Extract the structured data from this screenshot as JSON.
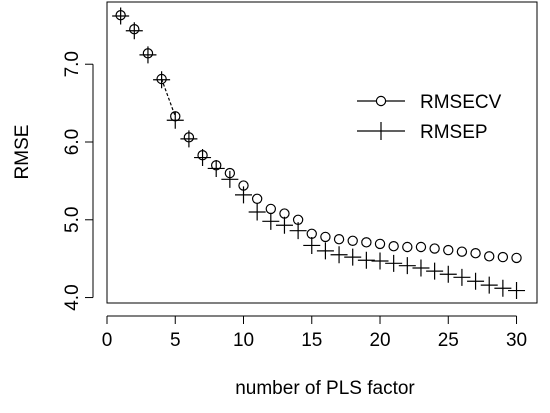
{
  "chart_data": {
    "type": "line",
    "title": "",
    "xlabel": "number of PLS factor",
    "ylabel": "RMSE",
    "xlim": [
      0,
      31.5
    ],
    "ylim": [
      3.93,
      7.8
    ],
    "x_ticks": [
      0,
      5,
      10,
      15,
      20,
      25,
      30
    ],
    "y_ticks": [
      4.0,
      5.0,
      6.0,
      7.0
    ],
    "y_tick_labels": [
      "4.0",
      "5.0",
      "6.0",
      "7.0"
    ],
    "grid": false,
    "legend_position": "top-right",
    "x": [
      1,
      2,
      3,
      4,
      5,
      6,
      7,
      8,
      9,
      10,
      11,
      12,
      13,
      14,
      15,
      16,
      17,
      18,
      19,
      20,
      21,
      22,
      23,
      24,
      25,
      26,
      27,
      28,
      29,
      30
    ],
    "series": [
      {
        "name": "RMSECV",
        "marker": "circle",
        "values": [
          7.63,
          7.45,
          7.14,
          6.81,
          6.33,
          6.06,
          5.83,
          5.7,
          5.6,
          5.44,
          5.27,
          5.14,
          5.08,
          5.0,
          4.82,
          4.78,
          4.75,
          4.73,
          4.71,
          4.69,
          4.66,
          4.65,
          4.65,
          4.63,
          4.61,
          4.59,
          4.57,
          4.53,
          4.52,
          4.51
        ]
      },
      {
        "name": "RMSEP",
        "marker": "plus",
        "values": [
          7.62,
          7.43,
          7.12,
          6.8,
          6.28,
          6.04,
          5.8,
          5.66,
          5.52,
          5.32,
          5.1,
          4.98,
          4.93,
          4.86,
          4.67,
          4.6,
          4.55,
          4.52,
          4.48,
          4.47,
          4.44,
          4.41,
          4.38,
          4.34,
          4.3,
          4.26,
          4.21,
          4.16,
          4.12,
          4.09
        ]
      }
    ],
    "connector": {
      "from_x": 4,
      "to_x": 5,
      "style": "dashed"
    }
  }
}
